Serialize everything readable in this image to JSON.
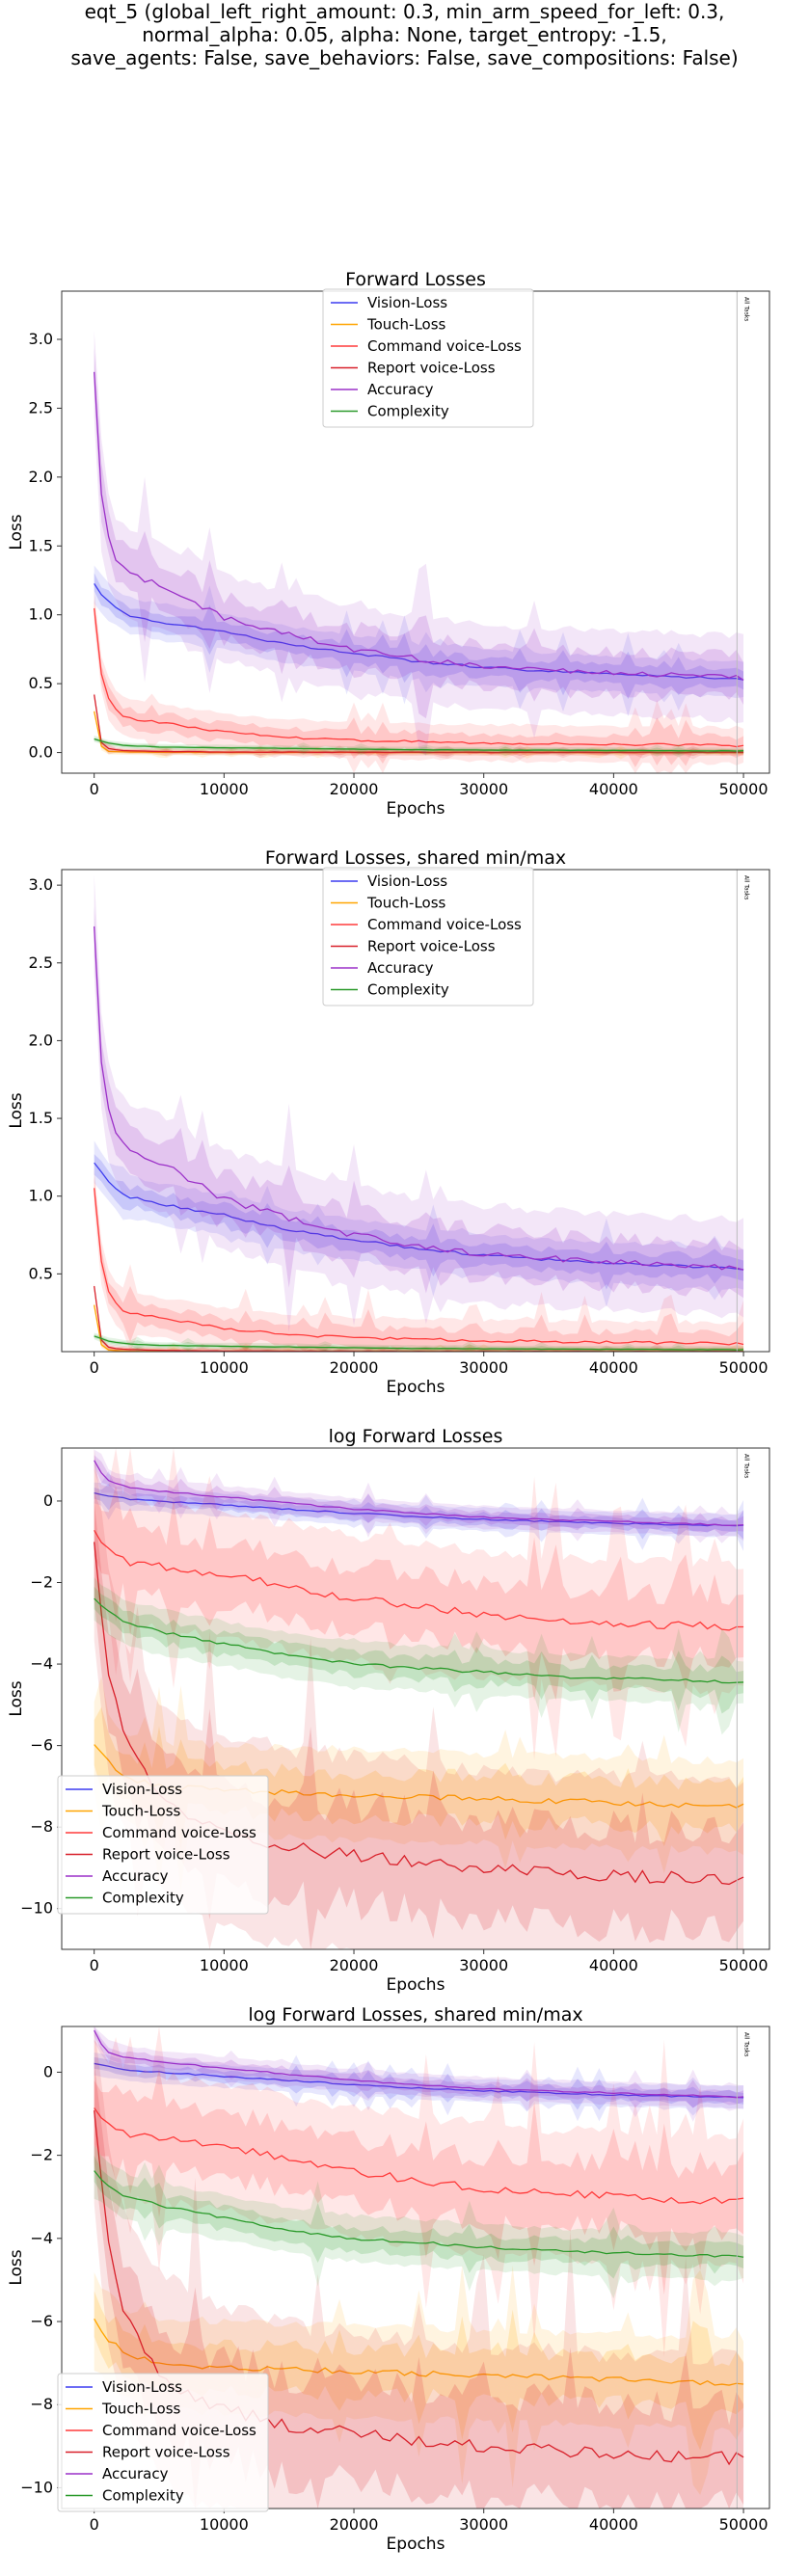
{
  "suptitle": [
    "eqt_5 (global_left_right_amount: 0.3, min_arm_speed_for_left: 0.3,",
    "normal_alpha: 0.05, alpha: None, target_entropy: -1.5,",
    "save_agents: False, save_behaviors: False, save_compositions: False)"
  ],
  "colors": {
    "Vision-Loss": "#3b3bf0",
    "Touch-Loss": "#ffa500",
    "Command voice-Loss": "#ff3b3b",
    "Report voice-Loss": "#d8202a",
    "Accuracy": "#9b30c8",
    "Complexity": "#2a9a2a"
  },
  "chart_data": [
    {
      "type": "line",
      "title": "Forward Losses",
      "xlabel": "Epochs",
      "ylabel": "Loss",
      "xlim": [
        -2500,
        52000
      ],
      "ylim": [
        -0.15,
        3.35
      ],
      "xticks": [
        "0",
        "10000",
        "20000",
        "30000",
        "40000",
        "50000"
      ],
      "yticks": [
        "0.0",
        "0.5",
        "1.0",
        "1.5",
        "2.0",
        "2.5",
        "3.0"
      ],
      "legend_position": "upper center",
      "annotation": "All Tasks",
      "annotation_x": 49500,
      "series": [
        {
          "name": "Vision-Loss",
          "x": [
            0,
            1000,
            2500,
            5000,
            10000,
            15000,
            20000,
            25000,
            30000,
            35000,
            40000,
            45000,
            50000
          ],
          "y": [
            1.22,
            1.1,
            1.0,
            0.95,
            0.88,
            0.78,
            0.72,
            0.66,
            0.62,
            0.59,
            0.57,
            0.55,
            0.53
          ]
        },
        {
          "name": "Touch-Loss",
          "x": [
            0,
            500,
            1000,
            2500,
            5000,
            10000,
            20000,
            30000,
            40000,
            50000
          ],
          "y": [
            0.3,
            0.05,
            0.01,
            0.004,
            0.002,
            0.001,
            0.001,
            0.001,
            0.001,
            0.001
          ]
        },
        {
          "name": "Command voice-Loss",
          "x": [
            0,
            300,
            800,
            1500,
            2500,
            5000,
            10000,
            15000,
            20000,
            25000,
            30000,
            35000,
            40000,
            45000,
            50000
          ],
          "y": [
            1.05,
            0.7,
            0.45,
            0.32,
            0.25,
            0.22,
            0.15,
            0.11,
            0.09,
            0.08,
            0.07,
            0.065,
            0.06,
            0.055,
            0.05
          ]
        },
        {
          "name": "Report voice-Loss",
          "x": [
            0,
            500,
            1000,
            2000,
            5000,
            10000,
            20000,
            30000,
            40000,
            50000
          ],
          "y": [
            0.42,
            0.08,
            0.03,
            0.015,
            0.008,
            0.004,
            0.002,
            0.001,
            0.001,
            0.001
          ]
        },
        {
          "name": "Accuracy",
          "x": [
            0,
            300,
            800,
            1500,
            2500,
            5000,
            7500,
            10000,
            15000,
            20000,
            25000,
            30000,
            35000,
            40000,
            45000,
            50000
          ],
          "y": [
            2.75,
            2.1,
            1.65,
            1.42,
            1.3,
            1.22,
            1.1,
            0.98,
            0.86,
            0.75,
            0.68,
            0.62,
            0.6,
            0.58,
            0.56,
            0.54
          ]
        },
        {
          "name": "Complexity",
          "x": [
            0,
            1000,
            2500,
            5000,
            10000,
            15000,
            20000,
            25000,
            30000,
            40000,
            50000
          ],
          "y": [
            0.1,
            0.07,
            0.05,
            0.04,
            0.035,
            0.03,
            0.025,
            0.02,
            0.018,
            0.015,
            0.012
          ]
        }
      ]
    },
    {
      "type": "line",
      "title": "Forward Losses, shared min/max",
      "xlabel": "Epochs",
      "ylabel": "Loss",
      "xlim": [
        -2500,
        52000
      ],
      "ylim": [
        0.0,
        3.1
      ],
      "xticks": [
        "0",
        "10000",
        "20000",
        "30000",
        "40000",
        "50000"
      ],
      "yticks": [
        "0.5",
        "1.0",
        "1.5",
        "2.0",
        "2.5",
        "3.0"
      ],
      "legend_position": "upper center",
      "annotation": "All Tasks",
      "annotation_x": 49500,
      "series": [
        {
          "name": "Vision-Loss",
          "x": [
            0,
            1000,
            2500,
            5000,
            10000,
            15000,
            20000,
            25000,
            30000,
            35000,
            40000,
            45000,
            50000
          ],
          "y": [
            1.22,
            1.1,
            1.0,
            0.95,
            0.88,
            0.78,
            0.72,
            0.66,
            0.62,
            0.59,
            0.57,
            0.55,
            0.53
          ]
        },
        {
          "name": "Touch-Loss",
          "x": [
            0,
            500,
            1000,
            2500,
            5000,
            10000,
            20000,
            30000,
            40000,
            50000
          ],
          "y": [
            0.3,
            0.05,
            0.01,
            0.004,
            0.002,
            0.001,
            0.001,
            0.001,
            0.001,
            0.001
          ]
        },
        {
          "name": "Command voice-Loss",
          "x": [
            0,
            300,
            800,
            1500,
            2500,
            5000,
            10000,
            15000,
            20000,
            25000,
            30000,
            35000,
            40000,
            45000,
            50000
          ],
          "y": [
            1.05,
            0.7,
            0.45,
            0.32,
            0.25,
            0.22,
            0.15,
            0.11,
            0.09,
            0.08,
            0.07,
            0.065,
            0.06,
            0.055,
            0.05
          ]
        },
        {
          "name": "Report voice-Loss",
          "x": [
            0,
            500,
            1000,
            2000,
            5000,
            10000,
            20000,
            30000,
            40000,
            50000
          ],
          "y": [
            0.42,
            0.08,
            0.03,
            0.015,
            0.008,
            0.004,
            0.002,
            0.001,
            0.001,
            0.001
          ]
        },
        {
          "name": "Accuracy",
          "x": [
            0,
            300,
            800,
            1500,
            2500,
            5000,
            7500,
            10000,
            15000,
            20000,
            25000,
            30000,
            35000,
            40000,
            45000,
            50000
          ],
          "y": [
            2.75,
            2.1,
            1.65,
            1.42,
            1.3,
            1.22,
            1.1,
            0.98,
            0.86,
            0.75,
            0.68,
            0.62,
            0.6,
            0.58,
            0.56,
            0.54
          ]
        },
        {
          "name": "Complexity",
          "x": [
            0,
            1000,
            2500,
            5000,
            10000,
            15000,
            20000,
            25000,
            30000,
            40000,
            50000
          ],
          "y": [
            0.1,
            0.07,
            0.05,
            0.04,
            0.035,
            0.03,
            0.025,
            0.02,
            0.018,
            0.015,
            0.012
          ]
        }
      ]
    },
    {
      "type": "line",
      "title": "log Forward Losses",
      "xlabel": "Epochs",
      "ylabel": "Loss",
      "xlim": [
        -2500,
        52000
      ],
      "ylim": [
        -11.0,
        1.3
      ],
      "xticks": [
        "0",
        "10000",
        "20000",
        "30000",
        "40000",
        "50000"
      ],
      "yticks": [
        "−10",
        "−8",
        "−6",
        "−4",
        "−2",
        "0"
      ],
      "legend_position": "lower left",
      "annotation": "All Tasks",
      "annotation_x": 49500,
      "series": [
        {
          "name": "Vision-Loss",
          "x": [
            0,
            2500,
            5000,
            10000,
            15000,
            20000,
            25000,
            30000,
            35000,
            40000,
            45000,
            50000
          ],
          "y": [
            0.2,
            0.05,
            0.0,
            -0.1,
            -0.2,
            -0.3,
            -0.38,
            -0.45,
            -0.5,
            -0.55,
            -0.58,
            -0.6
          ]
        },
        {
          "name": "Touch-Loss",
          "x": [
            0,
            1000,
            2500,
            5000,
            10000,
            15000,
            20000,
            25000,
            30000,
            35000,
            40000,
            45000,
            50000
          ],
          "y": [
            -6.0,
            -6.4,
            -6.8,
            -7.0,
            -7.1,
            -7.15,
            -7.2,
            -7.25,
            -7.3,
            -7.35,
            -7.4,
            -7.45,
            -7.5
          ]
        },
        {
          "name": "Command voice-Loss",
          "x": [
            0,
            500,
            1000,
            2500,
            5000,
            7500,
            10000,
            15000,
            20000,
            25000,
            30000,
            35000,
            40000,
            45000,
            50000
          ],
          "y": [
            -0.8,
            -1.0,
            -1.2,
            -1.5,
            -1.6,
            -1.7,
            -1.8,
            -2.1,
            -2.4,
            -2.6,
            -2.8,
            -2.9,
            -3.0,
            -3.05,
            -3.1
          ]
        },
        {
          "name": "Report voice-Loss",
          "x": [
            0,
            500,
            1000,
            2000,
            3500,
            5000,
            7500,
            10000,
            15000,
            20000,
            25000,
            30000,
            35000,
            40000,
            45000,
            50000
          ],
          "y": [
            -0.9,
            -2.5,
            -4.0,
            -5.5,
            -6.5,
            -7.2,
            -7.8,
            -8.1,
            -8.5,
            -8.7,
            -8.9,
            -9.0,
            -9.1,
            -9.2,
            -9.25,
            -9.3
          ]
        },
        {
          "name": "Accuracy",
          "x": [
            0,
            500,
            1000,
            2500,
            5000,
            10000,
            15000,
            20000,
            25000,
            30000,
            35000,
            40000,
            45000,
            50000
          ],
          "y": [
            1.0,
            0.7,
            0.5,
            0.35,
            0.25,
            0.1,
            -0.05,
            -0.2,
            -0.3,
            -0.4,
            -0.45,
            -0.5,
            -0.55,
            -0.6
          ]
        },
        {
          "name": "Complexity",
          "x": [
            0,
            1000,
            2500,
            5000,
            10000,
            15000,
            20000,
            25000,
            30000,
            35000,
            40000,
            45000,
            50000
          ],
          "y": [
            -2.4,
            -2.7,
            -3.0,
            -3.2,
            -3.5,
            -3.8,
            -4.0,
            -4.1,
            -4.2,
            -4.3,
            -4.35,
            -4.4,
            -4.45
          ]
        }
      ]
    },
    {
      "type": "line",
      "title": "log Forward Losses, shared min/max",
      "xlabel": "Epochs",
      "ylabel": "Loss",
      "xlim": [
        -2500,
        52000
      ],
      "ylim": [
        -10.5,
        1.1
      ],
      "xticks": [
        "0",
        "10000",
        "20000",
        "30000",
        "40000",
        "50000"
      ],
      "yticks": [
        "−10",
        "−8",
        "−6",
        "−4",
        "−2",
        "0"
      ],
      "legend_position": "lower left",
      "annotation": "All Tasks",
      "annotation_x": 49500,
      "series": [
        {
          "name": "Vision-Loss",
          "x": [
            0,
            2500,
            5000,
            10000,
            15000,
            20000,
            25000,
            30000,
            35000,
            40000,
            45000,
            50000
          ],
          "y": [
            0.2,
            0.05,
            0.0,
            -0.1,
            -0.2,
            -0.3,
            -0.38,
            -0.45,
            -0.5,
            -0.55,
            -0.58,
            -0.6
          ]
        },
        {
          "name": "Touch-Loss",
          "x": [
            0,
            1000,
            2500,
            5000,
            10000,
            15000,
            20000,
            25000,
            30000,
            35000,
            40000,
            45000,
            50000
          ],
          "y": [
            -6.0,
            -6.4,
            -6.8,
            -7.0,
            -7.1,
            -7.15,
            -7.2,
            -7.25,
            -7.3,
            -7.35,
            -7.4,
            -7.45,
            -7.5
          ]
        },
        {
          "name": "Command voice-Loss",
          "x": [
            0,
            500,
            1000,
            2500,
            5000,
            7500,
            10000,
            15000,
            20000,
            25000,
            30000,
            35000,
            40000,
            45000,
            50000
          ],
          "y": [
            -0.8,
            -1.0,
            -1.2,
            -1.5,
            -1.6,
            -1.7,
            -1.8,
            -2.1,
            -2.4,
            -2.6,
            -2.8,
            -2.9,
            -3.0,
            -3.05,
            -3.1
          ]
        },
        {
          "name": "Report voice-Loss",
          "x": [
            0,
            500,
            1000,
            2000,
            3500,
            5000,
            7500,
            10000,
            15000,
            20000,
            25000,
            30000,
            35000,
            40000,
            45000,
            50000
          ],
          "y": [
            -0.9,
            -2.5,
            -4.0,
            -5.5,
            -6.5,
            -7.2,
            -7.8,
            -8.1,
            -8.5,
            -8.7,
            -8.9,
            -9.0,
            -9.1,
            -9.2,
            -9.25,
            -9.3
          ]
        },
        {
          "name": "Accuracy",
          "x": [
            0,
            500,
            1000,
            2500,
            5000,
            10000,
            15000,
            20000,
            25000,
            30000,
            35000,
            40000,
            45000,
            50000
          ],
          "y": [
            1.0,
            0.7,
            0.5,
            0.35,
            0.25,
            0.1,
            -0.05,
            -0.2,
            -0.3,
            -0.4,
            -0.45,
            -0.5,
            -0.55,
            -0.6
          ]
        },
        {
          "name": "Complexity",
          "x": [
            0,
            1000,
            2500,
            5000,
            10000,
            15000,
            20000,
            25000,
            30000,
            35000,
            40000,
            45000,
            50000
          ],
          "y": [
            -2.4,
            -2.7,
            -3.0,
            -3.2,
            -3.5,
            -3.8,
            -4.0,
            -4.1,
            -4.2,
            -4.3,
            -4.35,
            -4.4,
            -4.45
          ]
        }
      ]
    }
  ]
}
